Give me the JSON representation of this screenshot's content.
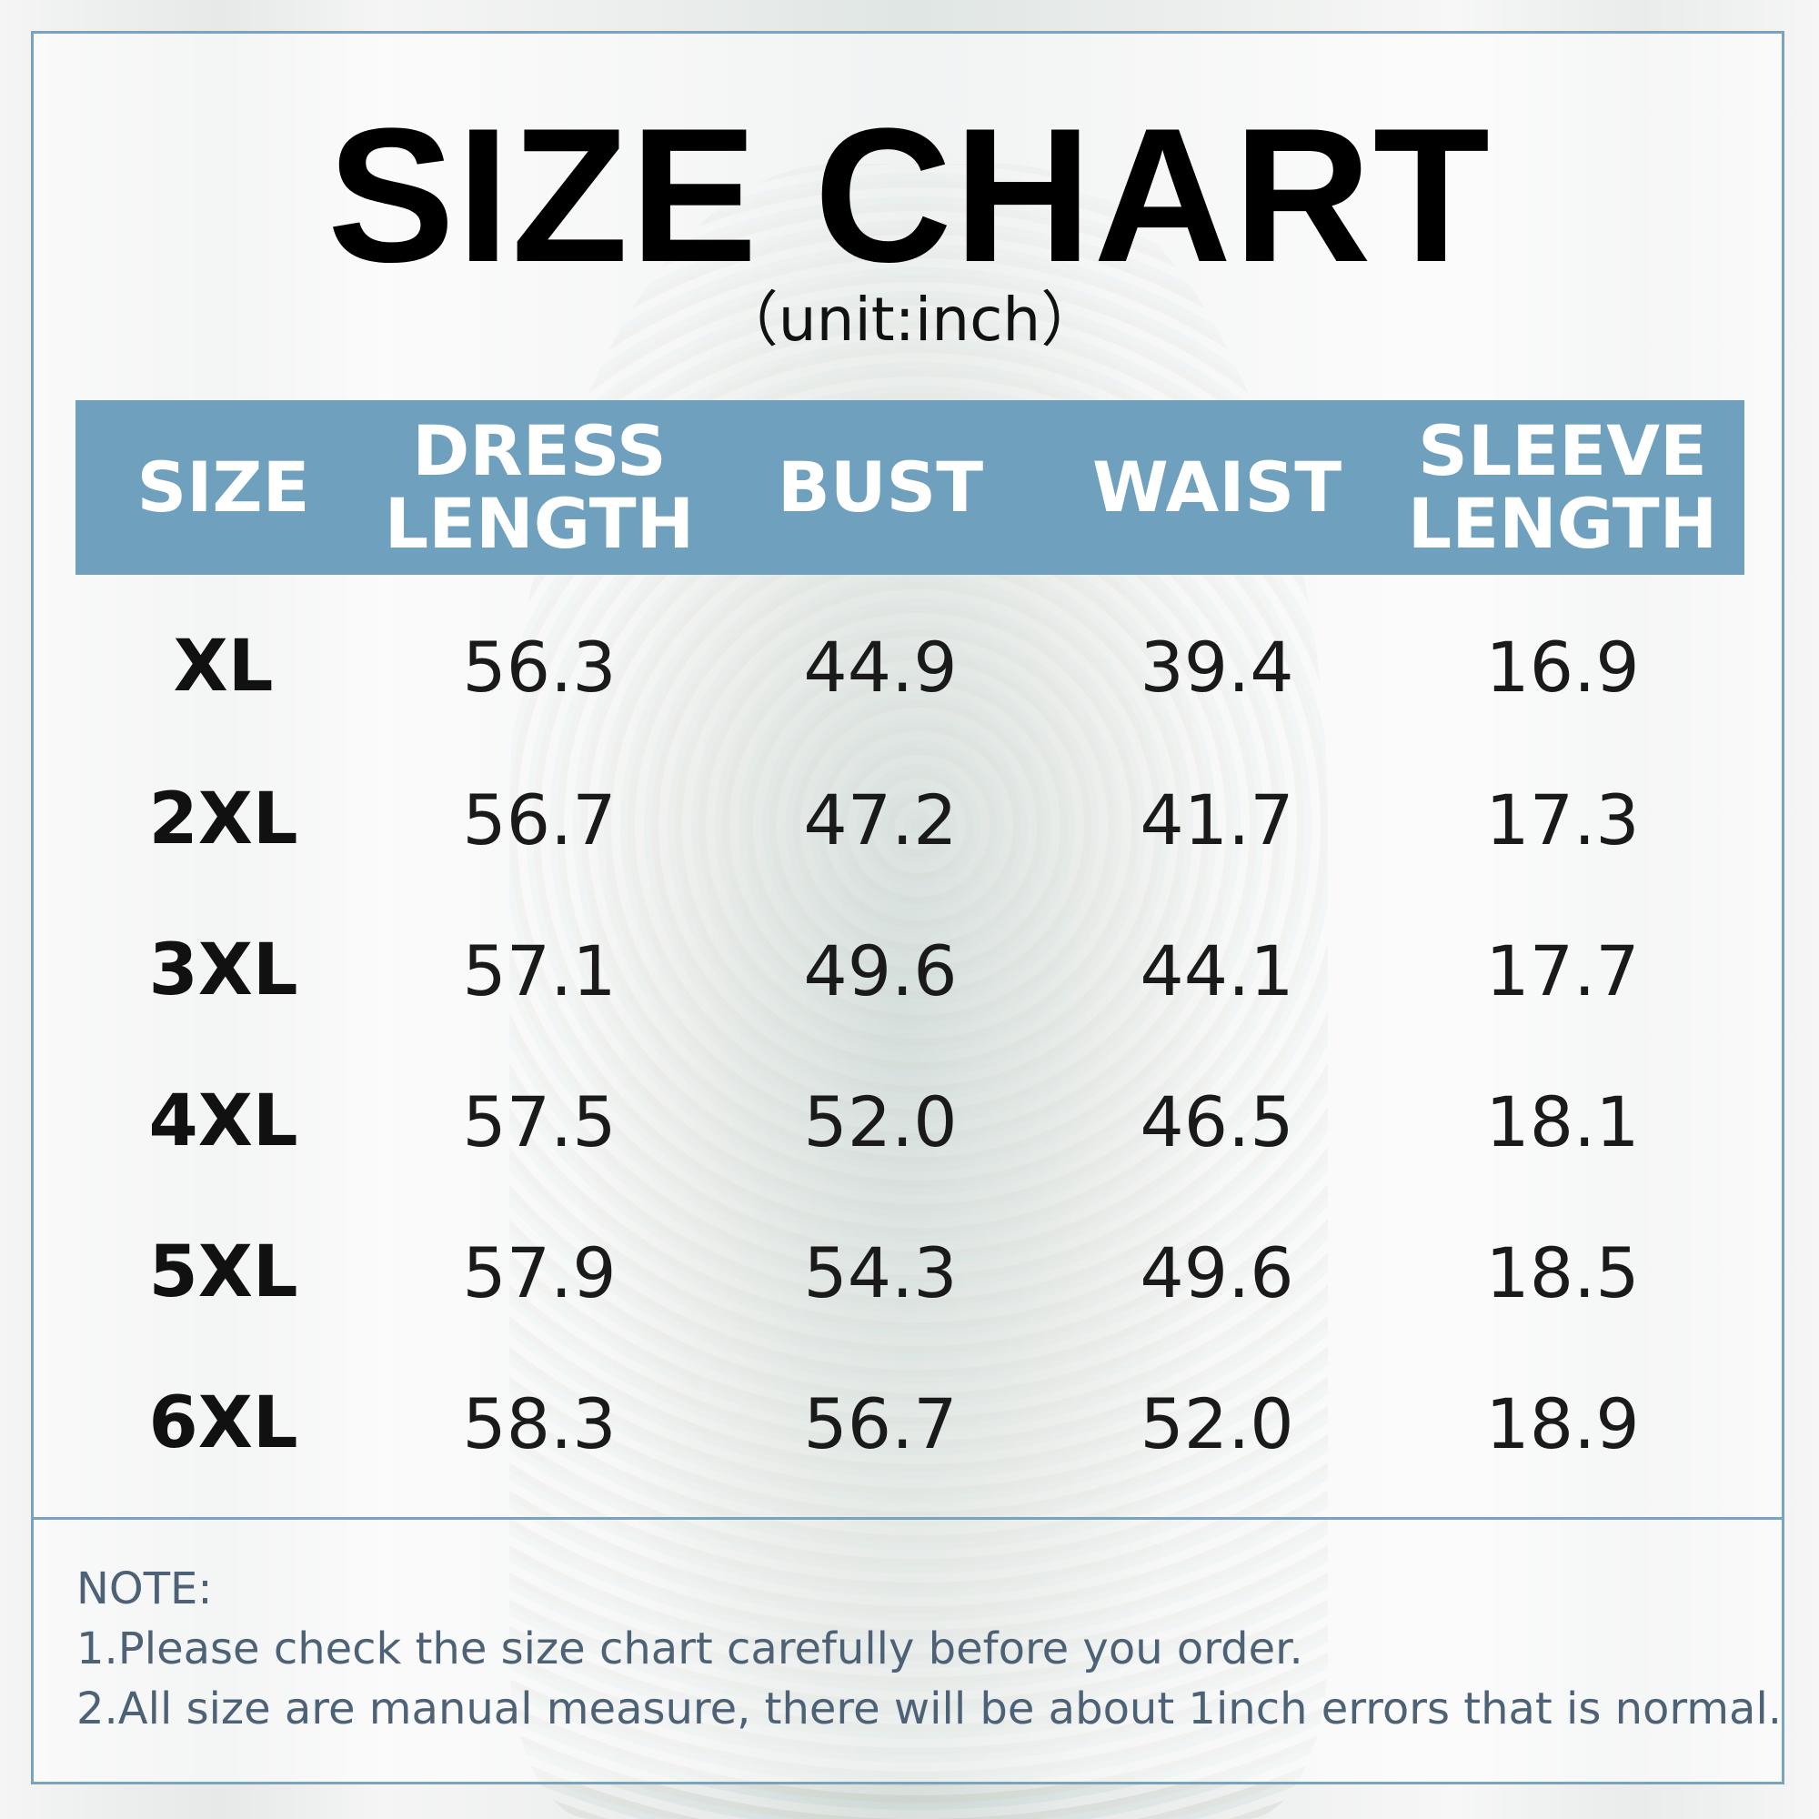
{
  "title": "SIZE CHART",
  "unit": "（unit:inch）",
  "columns": [
    "SIZE",
    "DRESS\nLENGTH",
    "BUST",
    "WAIST",
    "SLEEVE\nLENGTH"
  ],
  "rows": [
    [
      "XL",
      "56.3",
      "44.9",
      "39.4",
      "16.9"
    ],
    [
      "2XL",
      "56.7",
      "47.2",
      "41.7",
      "17.3"
    ],
    [
      "3XL",
      "57.1",
      "49.6",
      "44.1",
      "17.7"
    ],
    [
      "4XL",
      "57.5",
      "52.0",
      "46.5",
      "18.1"
    ],
    [
      "5XL",
      "57.9",
      "54.3",
      "49.6",
      "18.5"
    ],
    [
      "6XL",
      "58.3",
      "56.7",
      "52.0",
      "18.9"
    ]
  ],
  "note": {
    "heading": "NOTE:",
    "lines": [
      "1.Please check the size chart carefully before you order.",
      "2.All size are manual measure, there will be about 1inch errors that is normal."
    ]
  },
  "colors": {
    "header_bg": "#6fa1bf",
    "border": "#7aa3bf",
    "note_text": "#4d6276"
  }
}
